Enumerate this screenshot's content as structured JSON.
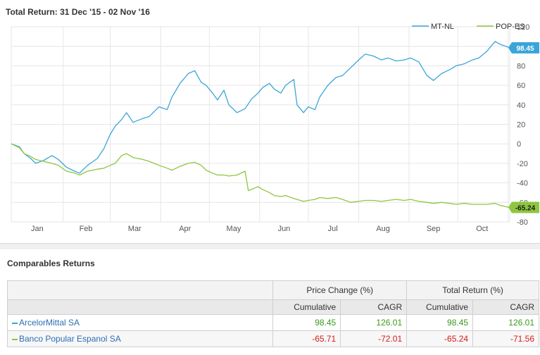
{
  "chart_data": {
    "type": "line",
    "title": "Total Return: 31 Dec '15 - 02 Nov '16",
    "x_labels": [
      "Jan",
      "Feb",
      "Mar",
      "Apr",
      "May",
      "Jun",
      "Jul",
      "Aug",
      "Sep",
      "Oct"
    ],
    "y_ticks": [
      120,
      100,
      80,
      60,
      40,
      20,
      0,
      -20,
      -40,
      -60,
      -80
    ],
    "ylim": [
      -80,
      120
    ],
    "grid": true,
    "legend": "top-right",
    "series": [
      {
        "name": "MT-NL",
        "color": "#3aa5d9",
        "last_value": "98.45",
        "points": [
          [
            "2015-12-31",
            0
          ],
          [
            "2016-01-05",
            -3
          ],
          [
            "2016-01-08",
            -10
          ],
          [
            "2016-01-12",
            -15
          ],
          [
            "2016-01-15",
            -20
          ],
          [
            "2016-01-20",
            -17
          ],
          [
            "2016-01-25",
            -12
          ],
          [
            "2016-01-29",
            -16
          ],
          [
            "2016-02-03",
            -24
          ],
          [
            "2016-02-08",
            -28
          ],
          [
            "2016-02-11",
            -30
          ],
          [
            "2016-02-16",
            -22
          ],
          [
            "2016-02-22",
            -15
          ],
          [
            "2016-02-26",
            -5
          ],
          [
            "2016-03-01",
            10
          ],
          [
            "2016-03-04",
            18
          ],
          [
            "2016-03-08",
            25
          ],
          [
            "2016-03-11",
            32
          ],
          [
            "2016-03-15",
            22
          ],
          [
            "2016-03-21",
            26
          ],
          [
            "2016-03-25",
            28
          ],
          [
            "2016-03-31",
            38
          ],
          [
            "2016-04-05",
            35
          ],
          [
            "2016-04-08",
            48
          ],
          [
            "2016-04-13",
            62
          ],
          [
            "2016-04-18",
            72
          ],
          [
            "2016-04-22",
            75
          ],
          [
            "2016-04-26",
            63
          ],
          [
            "2016-04-29",
            60
          ],
          [
            "2016-05-03",
            52
          ],
          [
            "2016-05-06",
            45
          ],
          [
            "2016-05-10",
            55
          ],
          [
            "2016-05-13",
            40
          ],
          [
            "2016-05-18",
            32
          ],
          [
            "2016-05-23",
            36
          ],
          [
            "2016-05-27",
            46
          ],
          [
            "2016-05-31",
            52
          ],
          [
            "2016-06-03",
            58
          ],
          [
            "2016-06-07",
            62
          ],
          [
            "2016-06-10",
            56
          ],
          [
            "2016-06-14",
            52
          ],
          [
            "2016-06-17",
            60
          ],
          [
            "2016-06-22",
            66
          ],
          [
            "2016-06-24",
            40
          ],
          [
            "2016-06-28",
            32
          ],
          [
            "2016-07-01",
            38
          ],
          [
            "2016-07-05",
            35
          ],
          [
            "2016-07-08",
            48
          ],
          [
            "2016-07-13",
            60
          ],
          [
            "2016-07-18",
            68
          ],
          [
            "2016-07-22",
            70
          ],
          [
            "2016-07-27",
            78
          ],
          [
            "2016-08-01",
            86
          ],
          [
            "2016-08-05",
            92
          ],
          [
            "2016-08-10",
            90
          ],
          [
            "2016-08-15",
            86
          ],
          [
            "2016-08-19",
            88
          ],
          [
            "2016-08-24",
            85
          ],
          [
            "2016-08-29",
            86
          ],
          [
            "2016-09-02",
            88
          ],
          [
            "2016-09-07",
            84
          ],
          [
            "2016-09-12",
            70
          ],
          [
            "2016-09-16",
            65
          ],
          [
            "2016-09-21",
            72
          ],
          [
            "2016-09-26",
            76
          ],
          [
            "2016-09-30",
            80
          ],
          [
            "2016-10-05",
            82
          ],
          [
            "2016-10-10",
            86
          ],
          [
            "2016-10-14",
            88
          ],
          [
            "2016-10-19",
            95
          ],
          [
            "2016-10-24",
            105
          ],
          [
            "2016-10-27",
            102
          ],
          [
            "2016-11-02",
            98.45
          ]
        ]
      },
      {
        "name": "POP-ES",
        "color": "#8dc63f",
        "last_value": "-65.24",
        "points": [
          [
            "2015-12-31",
            0
          ],
          [
            "2016-01-05",
            -4
          ],
          [
            "2016-01-08",
            -10
          ],
          [
            "2016-01-12",
            -13
          ],
          [
            "2016-01-15",
            -16
          ],
          [
            "2016-01-20",
            -18
          ],
          [
            "2016-01-25",
            -20
          ],
          [
            "2016-01-29",
            -22
          ],
          [
            "2016-02-03",
            -28
          ],
          [
            "2016-02-08",
            -30
          ],
          [
            "2016-02-11",
            -32
          ],
          [
            "2016-02-16",
            -28
          ],
          [
            "2016-02-22",
            -26
          ],
          [
            "2016-02-26",
            -25
          ],
          [
            "2016-03-01",
            -22
          ],
          [
            "2016-03-04",
            -20
          ],
          [
            "2016-03-08",
            -12
          ],
          [
            "2016-03-11",
            -10
          ],
          [
            "2016-03-15",
            -14
          ],
          [
            "2016-03-21",
            -16
          ],
          [
            "2016-03-25",
            -18
          ],
          [
            "2016-03-31",
            -22
          ],
          [
            "2016-04-05",
            -25
          ],
          [
            "2016-04-08",
            -27
          ],
          [
            "2016-04-13",
            -23
          ],
          [
            "2016-04-18",
            -20
          ],
          [
            "2016-04-22",
            -19
          ],
          [
            "2016-04-26",
            -22
          ],
          [
            "2016-04-29",
            -27
          ],
          [
            "2016-05-03",
            -30
          ],
          [
            "2016-05-06",
            -32
          ],
          [
            "2016-05-10",
            -32
          ],
          [
            "2016-05-13",
            -33
          ],
          [
            "2016-05-18",
            -32
          ],
          [
            "2016-05-23",
            -28
          ],
          [
            "2016-05-25",
            -48
          ],
          [
            "2016-05-31",
            -44
          ],
          [
            "2016-06-03",
            -47
          ],
          [
            "2016-06-07",
            -50
          ],
          [
            "2016-06-10",
            -53
          ],
          [
            "2016-06-14",
            -54
          ],
          [
            "2016-06-17",
            -53
          ],
          [
            "2016-06-22",
            -56
          ],
          [
            "2016-06-24",
            -57
          ],
          [
            "2016-06-28",
            -59
          ],
          [
            "2016-07-01",
            -58
          ],
          [
            "2016-07-05",
            -57
          ],
          [
            "2016-07-08",
            -55
          ],
          [
            "2016-07-13",
            -56
          ],
          [
            "2016-07-18",
            -55
          ],
          [
            "2016-07-22",
            -57
          ],
          [
            "2016-07-27",
            -60
          ],
          [
            "2016-08-01",
            -59
          ],
          [
            "2016-08-05",
            -58
          ],
          [
            "2016-08-10",
            -58
          ],
          [
            "2016-08-15",
            -59
          ],
          [
            "2016-08-19",
            -58
          ],
          [
            "2016-08-24",
            -57
          ],
          [
            "2016-08-29",
            -58
          ],
          [
            "2016-09-02",
            -57
          ],
          [
            "2016-09-07",
            -59
          ],
          [
            "2016-09-12",
            -60
          ],
          [
            "2016-09-16",
            -61
          ],
          [
            "2016-09-21",
            -60
          ],
          [
            "2016-09-26",
            -61
          ],
          [
            "2016-09-30",
            -62
          ],
          [
            "2016-10-05",
            -61
          ],
          [
            "2016-10-10",
            -62
          ],
          [
            "2016-10-14",
            -62
          ],
          [
            "2016-10-19",
            -62
          ],
          [
            "2016-10-24",
            -61
          ],
          [
            "2016-10-27",
            -63
          ],
          [
            "2016-11-02",
            -65.24
          ]
        ]
      }
    ]
  },
  "table": {
    "title": "Comparables Returns",
    "group_headers": [
      "Price Change (%)",
      "Total Return (%)"
    ],
    "sub_headers": [
      "Cumulative",
      "CAGR",
      "Cumulative",
      "CAGR"
    ],
    "rows": [
      {
        "name": "ArcelorMittal SA",
        "color": "#3aa5d9",
        "values": [
          "98.45",
          "126.01",
          "98.45",
          "126.01"
        ],
        "signs": [
          "pos",
          "pos",
          "pos",
          "pos"
        ]
      },
      {
        "name": "Banco Popular Espanol SA",
        "color": "#8dc63f",
        "values": [
          "-65.71",
          "-72.01",
          "-65.24",
          "-71.56"
        ],
        "signs": [
          "neg",
          "neg",
          "neg",
          "neg"
        ]
      }
    ]
  }
}
